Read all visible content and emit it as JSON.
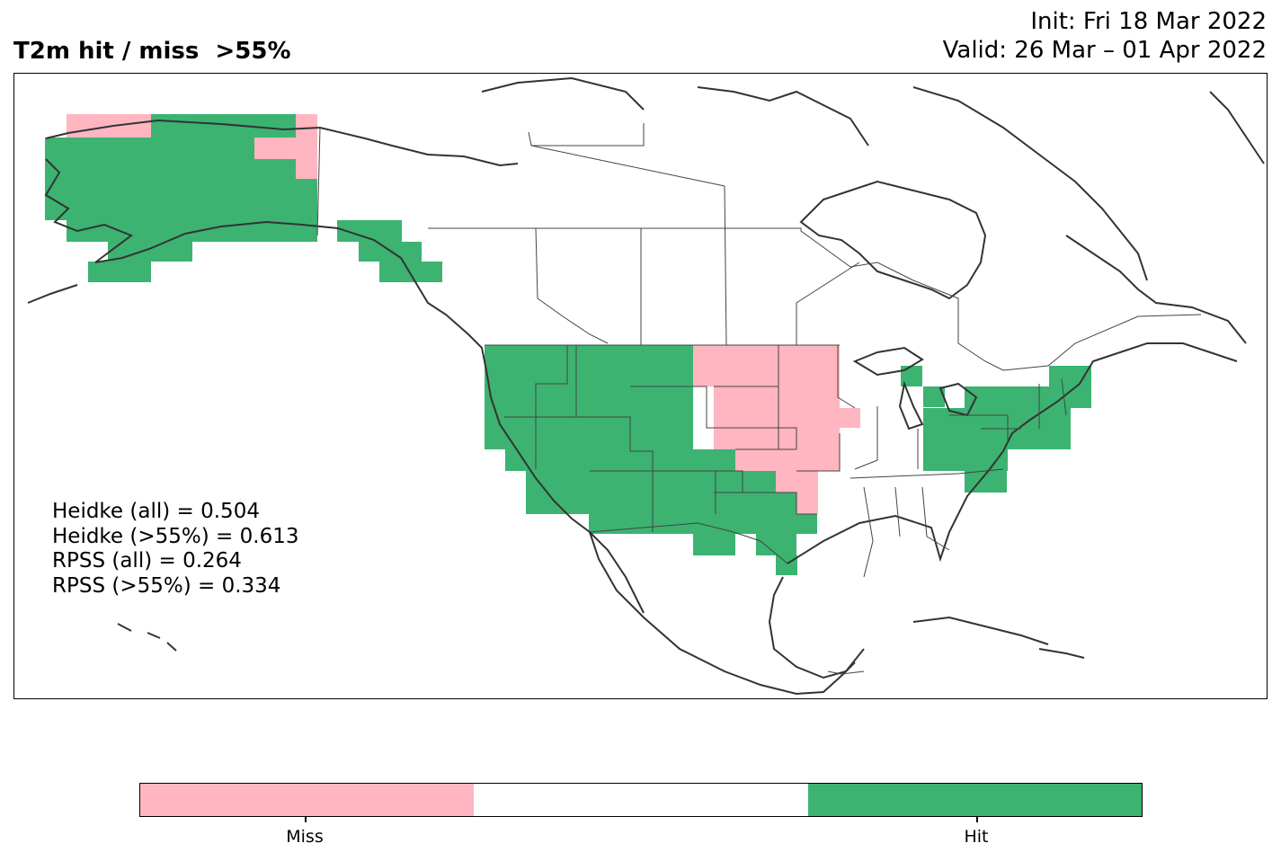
{
  "title": "T2m hit / miss  >55%",
  "init_line": "Init: Fri 18 Mar 2022",
  "valid_line": "Valid: 26 Mar – 01 Apr 2022",
  "stats": [
    "Heidke (all) = 0.504",
    "Heidke (>55%) = 0.613",
    "RPSS (all) = 0.264",
    "RPSS (>55%) = 0.334"
  ],
  "legend": {
    "categories": [
      "Miss",
      "",
      "Hit"
    ],
    "colors": [
      "#ffb6c1",
      "#ffffff",
      "#3cb371"
    ],
    "tick_labels": [
      "Miss",
      "Hit"
    ]
  },
  "colors": {
    "miss": "#ffb6c1",
    "hit": "#3cb371",
    "coastline": "#333333",
    "borders": "#444444"
  },
  "regions": {
    "hit": [
      "Alaska",
      "Alaska panhandle",
      "Washington",
      "Oregon",
      "California",
      "Idaho",
      "Nevada",
      "Montana",
      "Wyoming",
      "Utah",
      "Colorado",
      "Arizona",
      "New Mexico",
      "Texas",
      "Oklahoma",
      "Michigan",
      "Ohio",
      "Pennsylvania",
      "New York",
      "New England",
      "New Jersey",
      "Maryland",
      "Virginia",
      "West Virginia"
    ],
    "miss": [
      "North Dakota",
      "South Dakota",
      "Nebraska",
      "Kansas",
      "Minnesota",
      "Iowa",
      "Missouri",
      "Arkansas",
      "Western Alaska coast"
    ]
  }
}
